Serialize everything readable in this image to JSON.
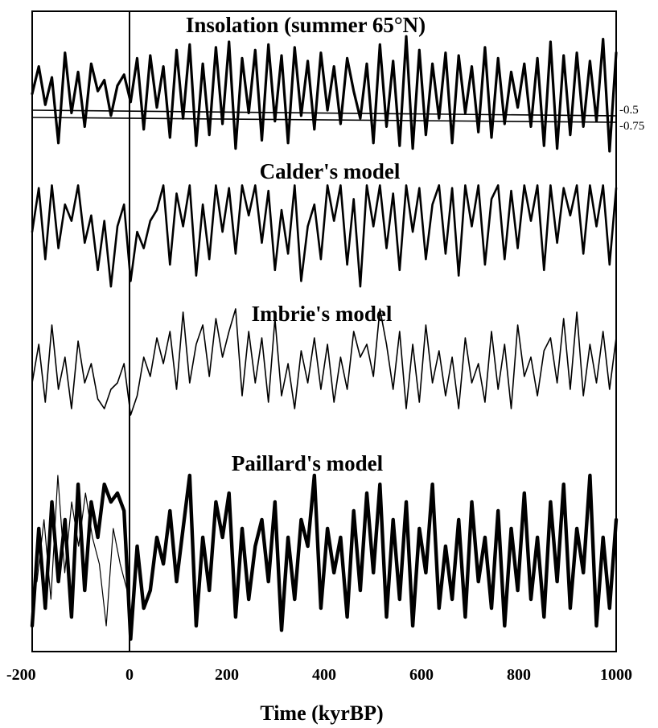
{
  "chart_data": {
    "type": "line",
    "xlabel": "Time (kyrBP)",
    "xlim": [
      -200,
      1000
    ],
    "x_ticks": [
      "-200",
      "0",
      "200",
      "400",
      "600",
      "800",
      "1000"
    ],
    "vertical_marker_x": 0,
    "grid": false,
    "panels": [
      {
        "title": "Insolation (summer 65°N)",
        "reference_lines": [
          {
            "label": "-0.5"
          },
          {
            "label": "-0.75"
          }
        ],
        "series": [
          {
            "values": [
              0.05,
              0.55,
              -0.15,
              0.35,
              -0.85,
              0.8,
              -0.3,
              0.45,
              -0.55,
              0.6,
              0.1,
              0.3,
              -0.35,
              0.2,
              0.4,
              -0.1,
              0.7,
              -0.6,
              0.75,
              -0.2,
              0.55,
              -0.75,
              0.85,
              -0.4,
              0.95,
              -0.9,
              0.6,
              -0.7,
              0.9,
              -0.5,
              1.0,
              -0.95,
              0.7,
              -0.3,
              0.85,
              -0.8,
              0.95,
              -0.45,
              0.75,
              -0.85,
              0.9,
              -0.35,
              0.65,
              -0.6,
              0.8,
              -0.25,
              0.55,
              -0.5,
              0.7,
              0.1,
              -0.4,
              0.6,
              -0.85,
              0.95,
              -0.55,
              0.65,
              -0.9,
              1.1,
              -0.95,
              0.85,
              -0.7,
              0.6,
              -0.4,
              0.8,
              -0.85,
              0.75,
              -0.3,
              0.55,
              -0.65,
              0.9,
              -0.75,
              0.7,
              -0.5,
              0.45,
              -0.2,
              0.6,
              -0.55,
              0.7,
              -0.9,
              1.0,
              -0.95,
              0.75,
              -0.7,
              0.8,
              -0.55,
              0.65,
              -0.45,
              1.05,
              -1.0,
              0.8
            ]
          }
        ]
      },
      {
        "title": "Calder's model",
        "series": [
          {
            "values": [
              0.1,
              0.9,
              -0.4,
              0.95,
              -0.2,
              0.6,
              0.3,
              0.95,
              -0.1,
              0.4,
              -0.6,
              0.3,
              -0.9,
              0.2,
              0.6,
              -0.8,
              0.1,
              -0.2,
              0.3,
              0.5,
              0.95,
              -0.5,
              0.8,
              0.2,
              0.95,
              -0.7,
              0.6,
              -0.4,
              0.95,
              0.1,
              0.9,
              -0.3,
              0.95,
              0.4,
              0.95,
              -0.1,
              0.85,
              -0.6,
              0.5,
              -0.3,
              0.95,
              -0.8,
              0.2,
              0.6,
              -0.4,
              0.95,
              0.3,
              0.95,
              -0.5,
              0.7,
              -0.9,
              0.95,
              0.2,
              0.95,
              -0.2,
              0.8,
              -0.6,
              0.95,
              0.1,
              0.9,
              -0.4,
              0.6,
              0.95,
              -0.3,
              0.9,
              -0.7,
              0.95,
              0.2,
              0.95,
              -0.5,
              0.7,
              0.95,
              -0.4,
              0.85,
              -0.2,
              0.95,
              0.3,
              0.95,
              -0.6,
              0.95,
              -0.1,
              0.9,
              0.4,
              0.95,
              -0.3,
              0.95,
              0.2,
              0.95,
              -0.5,
              0.9
            ]
          }
        ]
      },
      {
        "title": "Imbrie's model",
        "series": [
          {
            "values": [
              -0.2,
              0.4,
              -0.5,
              0.7,
              -0.3,
              0.2,
              -0.6,
              0.45,
              -0.2,
              0.1,
              -0.45,
              -0.6,
              -0.3,
              -0.2,
              0.1,
              -0.7,
              -0.4,
              0.2,
              -0.1,
              0.5,
              0.1,
              0.6,
              -0.3,
              0.9,
              -0.2,
              0.4,
              0.7,
              -0.1,
              0.8,
              0.2,
              0.6,
              0.95,
              -0.4,
              0.6,
              -0.2,
              0.5,
              -0.5,
              0.8,
              -0.4,
              0.1,
              -0.6,
              0.3,
              -0.2,
              0.5,
              -0.3,
              0.4,
              -0.5,
              0.2,
              -0.3,
              0.6,
              0.2,
              0.4,
              -0.1,
              0.95,
              0.4,
              -0.3,
              0.6,
              -0.6,
              0.4,
              -0.5,
              0.7,
              -0.2,
              0.3,
              -0.4,
              0.2,
              -0.6,
              0.5,
              -0.2,
              0.1,
              -0.5,
              0.6,
              -0.3,
              0.4,
              -0.6,
              0.7,
              -0.1,
              0.2,
              -0.4,
              0.3,
              0.5,
              -0.2,
              0.8,
              -0.3,
              0.9,
              -0.4,
              0.4,
              -0.2,
              0.6,
              -0.3,
              0.5
            ]
          }
        ]
      },
      {
        "title": "Paillard's model",
        "series": [
          {
            "values": [
              -0.8,
              0.3,
              -0.6,
              0.6,
              -0.3,
              0.4,
              -0.7,
              0.8,
              -0.4,
              0.6,
              0.2,
              0.8,
              0.6,
              0.7,
              0.5,
              -0.95,
              0.1,
              -0.6,
              -0.4,
              0.2,
              -0.1,
              0.5,
              -0.3,
              0.3,
              0.9,
              -0.8,
              0.2,
              -0.4,
              0.6,
              0.2,
              0.7,
              -0.7,
              0.3,
              -0.5,
              0.1,
              0.4,
              -0.3,
              0.6,
              -0.85,
              0.2,
              -0.5,
              0.4,
              0.1,
              0.9,
              -0.6,
              0.3,
              -0.2,
              0.2,
              -0.7,
              0.5,
              -0.4,
              0.7,
              -0.2,
              0.8,
              -0.7,
              0.4,
              -0.5,
              0.6,
              -0.8,
              0.3,
              -0.2,
              0.8,
              -0.6,
              0.1,
              -0.5,
              0.4,
              -0.7,
              0.6,
              -0.3,
              0.2,
              -0.6,
              0.5,
              -0.8,
              0.3,
              -0.4,
              0.7,
              -0.5,
              0.2,
              -0.7,
              0.6,
              -0.3,
              0.8,
              -0.6,
              0.3,
              -0.2,
              0.9,
              -0.8,
              0.2,
              -0.6,
              0.4
            ]
          },
          {
            "values": [
              -0.3,
              0.4,
              -0.5,
              0.9,
              -0.2,
              0.6,
              0.1,
              0.7,
              0.2,
              -0.1,
              -0.8,
              0.3,
              -0.1,
              -0.4
            ]
          }
        ]
      }
    ]
  }
}
